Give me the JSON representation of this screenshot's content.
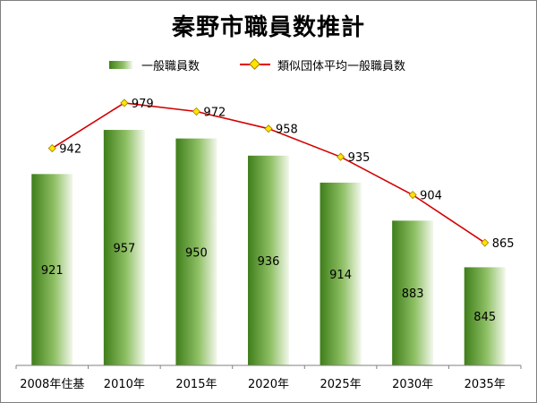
{
  "chart_data": {
    "type": "bar",
    "title": "秦野市職員数推計",
    "categories": [
      "2008年住基",
      "2010年",
      "2015年",
      "2020年",
      "2025年",
      "2030年",
      "2035年"
    ],
    "series": [
      {
        "name": "一般職員数",
        "type": "bar",
        "values": [
          921,
          957,
          950,
          936,
          914,
          883,
          845
        ]
      },
      {
        "name": "類似団体平均一般職員数",
        "type": "line",
        "values": [
          942,
          979,
          972,
          958,
          935,
          904,
          865
        ]
      }
    ],
    "ylim": [
      765,
      995
    ],
    "grid": false,
    "legend": "top-center"
  },
  "colors": {
    "bar_dark": "#3f7e1a",
    "bar_mid": "#8fc065",
    "bar_light": "#f3f8ec",
    "line": "#d40000",
    "marker_fill": "#ffe400",
    "marker_stroke": "#a08000"
  }
}
